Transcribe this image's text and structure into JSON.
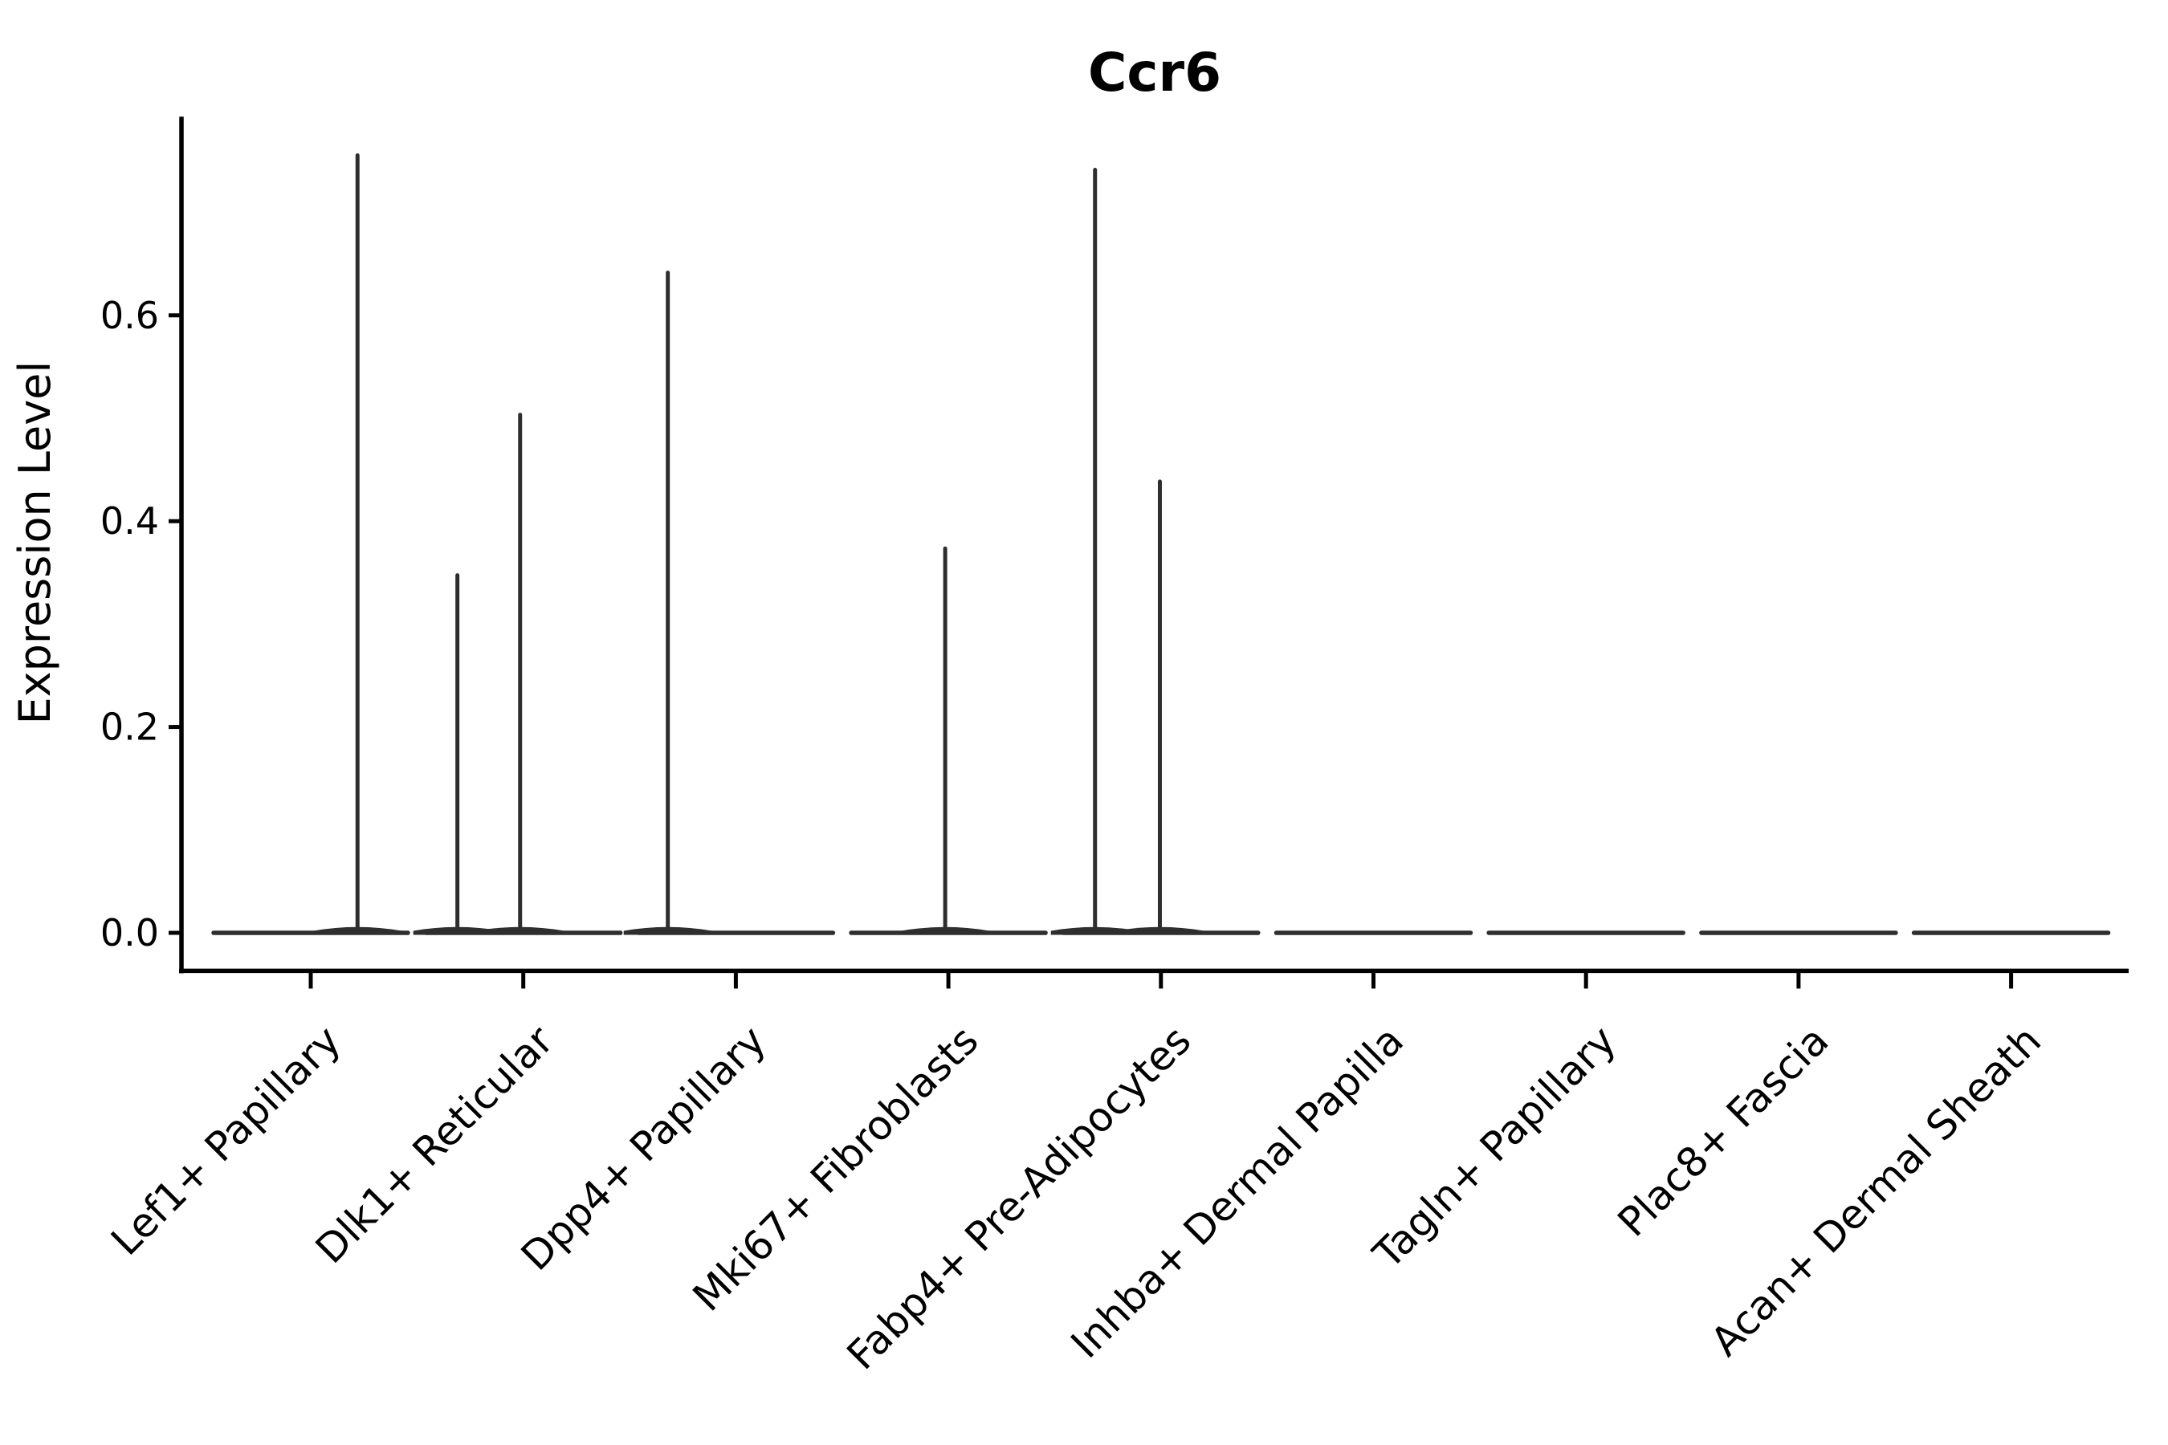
{
  "title": "Ccr6",
  "chart_data": {
    "type": "violin",
    "title": "Ccr6",
    "xlabel": "",
    "ylabel": "Expression Level",
    "yticks": [
      0.0,
      0.2,
      0.4,
      0.6
    ],
    "ylim": [
      -0.037,
      0.793
    ],
    "grid": false,
    "legend": null,
    "background_color": "#ffffff",
    "axis_color": "#000000",
    "violin_color": "#2e2e2e",
    "categories": [
      "Lef1+ Papillary",
      "Dlk1+ Reticular",
      "Dpp4+ Papillary",
      "Mki67+ Fibroblasts",
      "Fabp4+ Pre-Adipocytes",
      "Inhba+ Dermal Papilla",
      "Tagln+ Papillary",
      "Plac8+ Fascia",
      "Acan+ Dermal Sheath"
    ],
    "violins": [
      {
        "category": "Lef1+ Papillary",
        "baseline_value": 0.0,
        "max_value": 0.76,
        "spikes": [
          {
            "pos": 0.72,
            "value": 0.757
          }
        ]
      },
      {
        "category": "Dlk1+ Reticular",
        "baseline_value": 0.0,
        "max_value": 0.51,
        "spikes": [
          {
            "pos": 0.19,
            "value": 0.349
          },
          {
            "pos": 0.485,
            "value": 0.505
          }
        ]
      },
      {
        "category": "Dpp4+ Papillary",
        "baseline_value": 0.0,
        "max_value": 0.64,
        "spikes": [
          {
            "pos": 0.18,
            "value": 0.643
          }
        ]
      },
      {
        "category": "Mki67+ Fibroblasts",
        "baseline_value": 0.0,
        "max_value": 0.38,
        "spikes": [
          {
            "pos": 0.485,
            "value": 0.375
          }
        ]
      },
      {
        "category": "Fabp4+ Pre-Adipocytes",
        "baseline_value": 0.0,
        "max_value": 0.74,
        "spikes": [
          {
            "pos": 0.19,
            "value": 0.743
          },
          {
            "pos": 0.495,
            "value": 0.44
          }
        ]
      },
      {
        "category": "Inhba+ Dermal Papilla",
        "baseline_value": 0.0,
        "max_value": 0.0,
        "spikes": []
      },
      {
        "category": "Tagln+ Papillary",
        "baseline_value": 0.0,
        "max_value": 0.0,
        "spikes": []
      },
      {
        "category": "Plac8+ Fascia",
        "baseline_value": 0.0,
        "max_value": 0.0,
        "spikes": []
      },
      {
        "category": "Acan+ Dermal Sheath",
        "baseline_value": 0.0,
        "max_value": 0.0,
        "spikes": []
      }
    ]
  }
}
